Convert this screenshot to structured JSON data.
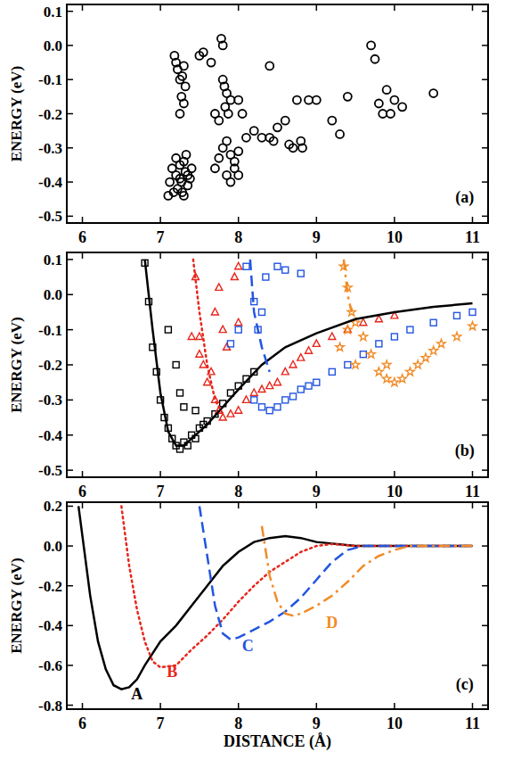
{
  "chart_data": [
    {
      "type": "scatter",
      "ylabel": "ENERGY (eV)",
      "xlim": [
        5.8,
        11.2
      ],
      "ylim": [
        -0.52,
        0.12
      ],
      "xticks": [
        6,
        7,
        8,
        9,
        10,
        11
      ],
      "yticks": [
        -0.5,
        -0.4,
        -0.3,
        -0.2,
        -0.1,
        {
          "value": 0,
          "label": "0.0"
        },
        0.1
      ],
      "annotations": [
        {
          "text": "(a)",
          "x": 10.9,
          "y": -0.46,
          "color": "#000000"
        }
      ],
      "series": [
        {
          "color": "#000000",
          "marker": "circle",
          "x": [
            7.1,
            7.12,
            7.15,
            7.17,
            7.2,
            7.22,
            7.25,
            7.27,
            7.3,
            7.32,
            7.35,
            7.38,
            7.4,
            7.2,
            7.25,
            7.3,
            7.35,
            7.28,
            7.33,
            7.18,
            7.2,
            7.22,
            7.25,
            7.28,
            7.3,
            7.27,
            7.3,
            7.25,
            7.32,
            7.5,
            7.55,
            7.78,
            7.8,
            7.8,
            7.82,
            7.85,
            7.83,
            7.87,
            7.9,
            7.75,
            7.7,
            7.65,
            7.7,
            7.75,
            7.8,
            7.85,
            7.9,
            7.95,
            8.0,
            7.9,
            7.95,
            8.0,
            7.85,
            8.1,
            8.2,
            8.3,
            8.4,
            8.45,
            8.5,
            8.6,
            8.65,
            8.7,
            8.8,
            8.82,
            8.75,
            8.9,
            9.0,
            9.2,
            9.3,
            9.4,
            9.7,
            9.75,
            9.8,
            9.85,
            9.9,
            9.95,
            10.0,
            10.1,
            10.5,
            8.4,
            8.0,
            8.05
          ],
          "values": [
            -0.44,
            -0.4,
            -0.36,
            -0.43,
            -0.38,
            -0.42,
            -0.35,
            -0.4,
            -0.44,
            -0.37,
            -0.41,
            -0.39,
            -0.36,
            -0.33,
            -0.39,
            -0.34,
            -0.38,
            -0.43,
            -0.32,
            -0.03,
            -0.05,
            -0.07,
            -0.1,
            -0.09,
            -0.06,
            -0.15,
            -0.17,
            -0.2,
            -0.12,
            -0.03,
            -0.02,
            0.02,
            0.0,
            -0.1,
            -0.12,
            -0.14,
            -0.18,
            -0.2,
            -0.16,
            -0.22,
            -0.2,
            -0.05,
            -0.36,
            -0.33,
            -0.3,
            -0.28,
            -0.32,
            -0.36,
            -0.38,
            -0.4,
            -0.34,
            -0.31,
            -0.38,
            -0.27,
            -0.25,
            -0.27,
            -0.27,
            -0.28,
            -0.24,
            -0.22,
            -0.29,
            -0.3,
            -0.28,
            -0.3,
            -0.16,
            -0.16,
            -0.16,
            -0.22,
            -0.26,
            -0.15,
            0.0,
            -0.04,
            -0.17,
            -0.2,
            -0.13,
            -0.2,
            -0.16,
            -0.18,
            -0.14,
            -0.06,
            -0.16,
            -0.2
          ]
        }
      ]
    },
    {
      "type": "scatter",
      "ylabel": "ENERGY (eV)",
      "xlim": [
        5.8,
        11.2
      ],
      "ylim": [
        -0.52,
        0.12
      ],
      "xticks": [
        6,
        7,
        8,
        9,
        10,
        11
      ],
      "yticks": [
        -0.5,
        -0.4,
        -0.3,
        -0.2,
        -0.1,
        {
          "value": 0,
          "label": "0.0"
        },
        0.1
      ],
      "annotations": [
        {
          "text": "(b)",
          "x": 10.9,
          "y": -0.46,
          "color": "#000000"
        }
      ],
      "series": [
        {
          "color": "#000000",
          "marker": "square",
          "x": [
            6.8,
            6.85,
            6.9,
            6.95,
            7.0,
            7.05,
            7.1,
            7.15,
            7.2,
            7.25,
            7.3,
            7.35,
            7.4,
            7.45,
            7.5,
            7.55,
            7.6,
            7.7,
            7.8,
            7.9,
            8.0,
            8.1,
            8.2,
            7.2,
            7.25,
            7.3,
            7.1,
            7.45
          ],
          "values": [
            0.09,
            -0.02,
            -0.15,
            -0.22,
            -0.3,
            -0.35,
            -0.38,
            -0.41,
            -0.43,
            -0.44,
            -0.42,
            -0.43,
            -0.4,
            -0.41,
            -0.38,
            -0.37,
            -0.36,
            -0.34,
            -0.31,
            -0.28,
            -0.26,
            -0.24,
            -0.22,
            -0.2,
            -0.28,
            -0.32,
            -0.1,
            -0.33
          ]
        },
        {
          "color": "#e8261b",
          "marker": "triangle",
          "x": [
            7.45,
            7.5,
            7.55,
            7.6,
            7.65,
            7.7,
            7.75,
            7.8,
            7.85,
            7.7,
            7.75,
            7.8,
            7.9,
            8.0,
            8.1,
            8.2,
            8.3,
            8.4,
            8.5,
            8.6,
            8.7,
            8.8,
            8.9,
            9.0,
            9.2,
            9.4,
            9.6,
            9.8,
            10.0,
            7.4,
            7.5,
            8.0,
            7.95,
            8.0
          ],
          "values": [
            0.05,
            -0.12,
            -0.2,
            -0.25,
            -0.22,
            -0.05,
            0.02,
            -0.1,
            -0.15,
            -0.3,
            -0.33,
            -0.35,
            -0.34,
            -0.33,
            -0.3,
            -0.28,
            -0.27,
            -0.26,
            -0.25,
            -0.22,
            -0.2,
            -0.18,
            -0.16,
            -0.14,
            -0.12,
            -0.1,
            -0.08,
            -0.07,
            -0.06,
            -0.12,
            -0.17,
            -0.08,
            0.05,
            0.08
          ]
        },
        {
          "color": "#2255e0",
          "marker": "square",
          "x": [
            8.1,
            8.2,
            8.25,
            8.3,
            8.35,
            8.0,
            8.2,
            8.3,
            8.4,
            8.5,
            8.6,
            8.7,
            8.8,
            8.9,
            9.0,
            9.2,
            9.4,
            9.6,
            9.8,
            10.0,
            10.2,
            10.5,
            10.8,
            11.0,
            8.5,
            8.6,
            8.8,
            7.9
          ],
          "values": [
            0.08,
            -0.02,
            -0.1,
            -0.05,
            0.05,
            -0.1,
            -0.3,
            -0.32,
            -0.33,
            -0.32,
            -0.3,
            -0.29,
            -0.27,
            -0.26,
            -0.25,
            -0.22,
            -0.2,
            -0.17,
            -0.14,
            -0.12,
            -0.1,
            -0.08,
            -0.06,
            -0.05,
            0.08,
            0.07,
            0.06,
            -0.14
          ]
        },
        {
          "color": "#f08c28",
          "marker": "star",
          "x": [
            9.35,
            9.4,
            9.45,
            9.4,
            9.5,
            9.6,
            9.7,
            9.8,
            9.9,
            10.0,
            10.1,
            10.2,
            10.3,
            10.4,
            10.5,
            10.6,
            10.8,
            11.0,
            9.3,
            9.5,
            9.9
          ],
          "values": [
            0.08,
            0.02,
            -0.05,
            -0.1,
            -0.08,
            -0.12,
            -0.17,
            -0.22,
            -0.24,
            -0.25,
            -0.24,
            -0.22,
            -0.2,
            -0.18,
            -0.16,
            -0.14,
            -0.12,
            -0.09,
            -0.15,
            -0.2,
            -0.2
          ]
        },
        {
          "type": "line",
          "color": "#000000",
          "line_style": "solid",
          "x": [
            6.8,
            6.9,
            7.0,
            7.1,
            7.2,
            7.3,
            7.4,
            7.6,
            7.8,
            8.0,
            8.3,
            8.6,
            9.0,
            9.5,
            10,
            10.5,
            11
          ],
          "values": [
            0.1,
            -0.1,
            -0.28,
            -0.39,
            -0.43,
            -0.43,
            -0.41,
            -0.37,
            -0.32,
            -0.27,
            -0.2,
            -0.15,
            -0.11,
            -0.07,
            -0.05,
            -0.035,
            -0.025
          ]
        },
        {
          "type": "line",
          "color": "#e8261b",
          "line_style": "dotted",
          "x": [
            7.42,
            7.5,
            7.6,
            7.7,
            7.8
          ],
          "values": [
            0.1,
            -0.05,
            -0.2,
            -0.3,
            -0.34
          ]
        },
        {
          "type": "line",
          "color": "#2255e0",
          "line_style": "dashed",
          "x": [
            8.15,
            8.2,
            8.3,
            8.4
          ],
          "values": [
            0.1,
            -0.05,
            -0.15,
            -0.22
          ]
        },
        {
          "type": "line",
          "color": "#f08c28",
          "line_style": "dashdot",
          "x": [
            9.35,
            9.4,
            9.45
          ],
          "values": [
            0.1,
            0.0,
            -0.05
          ]
        }
      ]
    },
    {
      "type": "line",
      "ylabel": "ENERGY (eV)",
      "xlabel": "DISTANCE (Å)",
      "xlim": [
        5.8,
        11.2
      ],
      "ylim": [
        -0.82,
        0.22
      ],
      "xticks": [
        6,
        7,
        8,
        9,
        10,
        11
      ],
      "yticks": [
        -0.8,
        -0.6,
        -0.4,
        -0.2,
        {
          "value": 0,
          "label": "0.0"
        },
        0.2
      ],
      "annotations": [
        {
          "text": "(c)",
          "x": 10.9,
          "y": -0.72,
          "color": "#000000"
        },
        {
          "text": "A",
          "x": 6.7,
          "y": -0.77,
          "color": "#000000"
        },
        {
          "text": "B",
          "x": 7.15,
          "y": -0.66,
          "color": "#e8261b"
        },
        {
          "text": "C",
          "x": 8.12,
          "y": -0.53,
          "color": "#2255e0"
        },
        {
          "text": "D",
          "x": 9.2,
          "y": -0.41,
          "color": "#f08c28"
        }
      ],
      "series": [
        {
          "color": "#000000",
          "line_style": "solid",
          "x": [
            5.95,
            6.0,
            6.1,
            6.2,
            6.3,
            6.4,
            6.5,
            6.6,
            6.7,
            6.8,
            7.0,
            7.2,
            7.4,
            7.6,
            7.8,
            8.0,
            8.2,
            8.4,
            8.6,
            8.8,
            9.0,
            9.5,
            10,
            11
          ],
          "values": [
            0.2,
            0.05,
            -0.25,
            -0.48,
            -0.62,
            -0.7,
            -0.72,
            -0.71,
            -0.67,
            -0.6,
            -0.48,
            -0.4,
            -0.3,
            -0.2,
            -0.1,
            -0.03,
            0.02,
            0.04,
            0.05,
            0.04,
            0.02,
            0.0,
            0.0,
            0.0
          ]
        },
        {
          "color": "#e8261b",
          "line_style": "dotted",
          "x": [
            6.5,
            6.6,
            6.7,
            6.8,
            6.9,
            7.0,
            7.2,
            7.4,
            7.6,
            7.8,
            8.0,
            8.2,
            8.4,
            8.6,
            8.8,
            9.0,
            9.2,
            9.5,
            10,
            11
          ],
          "values": [
            0.2,
            -0.1,
            -0.32,
            -0.48,
            -0.58,
            -0.61,
            -0.6,
            -0.52,
            -0.45,
            -0.37,
            -0.28,
            -0.2,
            -0.13,
            -0.08,
            -0.03,
            0.0,
            0.01,
            0.0,
            0.0,
            0.0
          ]
        },
        {
          "color": "#2255e0",
          "line_style": "dashed",
          "x": [
            7.5,
            7.6,
            7.7,
            7.8,
            7.9,
            8.0,
            8.2,
            8.4,
            8.6,
            8.8,
            9.0,
            9.2,
            9.4,
            9.6,
            10,
            11
          ],
          "values": [
            0.2,
            -0.05,
            -0.3,
            -0.44,
            -0.47,
            -0.46,
            -0.42,
            -0.38,
            -0.33,
            -0.26,
            -0.17,
            -0.08,
            -0.02,
            0.0,
            0.0,
            0.0
          ]
        },
        {
          "color": "#f08c28",
          "line_style": "dashdot",
          "x": [
            8.3,
            8.4,
            8.5,
            8.6,
            8.7,
            8.8,
            9.0,
            9.2,
            9.4,
            9.6,
            9.8,
            10,
            10.2,
            10.5,
            11
          ],
          "values": [
            0.1,
            -0.15,
            -0.28,
            -0.34,
            -0.35,
            -0.34,
            -0.3,
            -0.25,
            -0.18,
            -0.1,
            -0.05,
            -0.02,
            0.0,
            0.0,
            0.0
          ]
        }
      ]
    }
  ]
}
